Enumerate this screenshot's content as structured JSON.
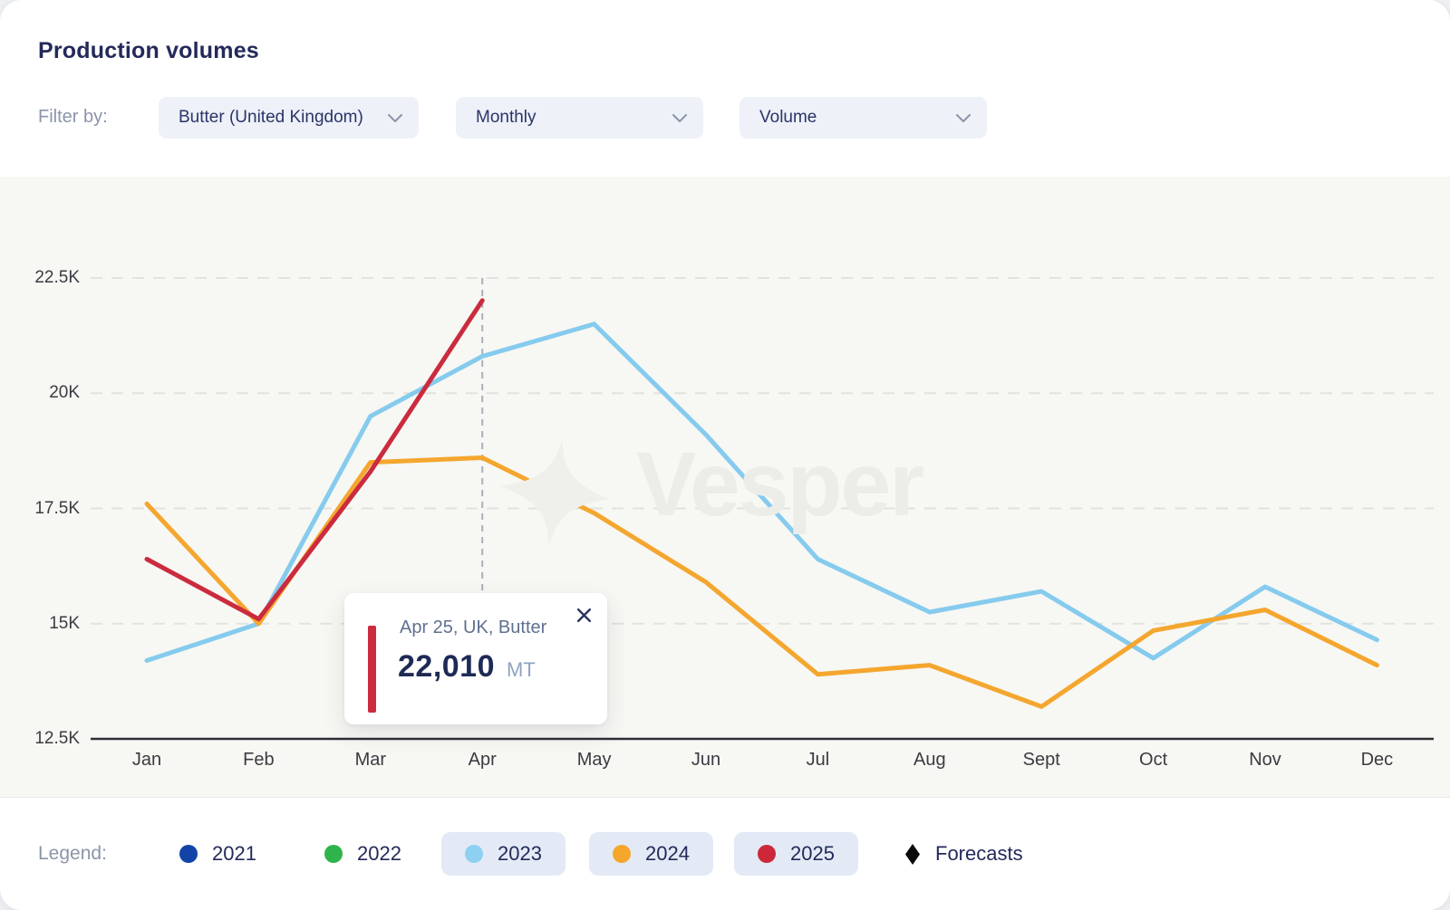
{
  "header": {
    "title": "Production volumes",
    "filter_label": "Filter by:",
    "filters": [
      {
        "id": "commodity",
        "value": "Butter (United Kingdom)"
      },
      {
        "id": "frequency",
        "value": "Monthly"
      },
      {
        "id": "metric",
        "value": "Volume"
      }
    ]
  },
  "chart_data": {
    "type": "line",
    "title": "Production volumes",
    "unit": "MT",
    "categories": [
      "Jan",
      "Feb",
      "Mar",
      "Apr",
      "May",
      "Jun",
      "Jul",
      "Aug",
      "Sept",
      "Oct",
      "Nov",
      "Dec"
    ],
    "y_ticks": [
      {
        "value": 12.5,
        "label": "12.5K"
      },
      {
        "value": 15,
        "label": "15K"
      },
      {
        "value": 17.5,
        "label": "17.5K"
      },
      {
        "value": 20,
        "label": "20K"
      },
      {
        "value": 22.5,
        "label": "22.5K"
      }
    ],
    "ylim": [
      12500,
      22500
    ],
    "grid": "horizontal-dashed",
    "legend_position": "bottom",
    "series": [
      {
        "name": "2023",
        "color": "#85cbee",
        "values": [
          14200,
          15000,
          19500,
          20800,
          21500,
          19100,
          16400,
          15250,
          15700,
          14250,
          15800,
          14650
        ]
      },
      {
        "name": "2024",
        "color": "#f4a62e",
        "values": [
          17600,
          15000,
          18500,
          18600,
          17400,
          15900,
          13900,
          14100,
          13200,
          14850,
          15300,
          14100
        ]
      },
      {
        "name": "2025",
        "color": "#cb2b3e",
        "values": [
          16400,
          15100,
          18300,
          22010,
          null,
          null,
          null,
          null,
          null,
          null,
          null,
          null
        ]
      }
    ]
  },
  "tooltip": {
    "title": "Apr 25, UK, Butter",
    "value": "22,010",
    "unit": "MT",
    "anchor_month": "Apr",
    "accent_color": "#cb2b3e"
  },
  "watermark": {
    "text": "Vesper"
  },
  "legend": {
    "label": "Legend:",
    "items": [
      {
        "label": "2021",
        "marker": "dot",
        "color": "#1144a6",
        "active": false
      },
      {
        "label": "2022",
        "marker": "dot",
        "color": "#2eb44b",
        "active": false
      },
      {
        "label": "2023",
        "marker": "dot",
        "color": "#8dd0f2",
        "active": true
      },
      {
        "label": "2024",
        "marker": "dot",
        "color": "#f5a72b",
        "active": true
      },
      {
        "label": "2025",
        "marker": "dot",
        "color": "#cc2839",
        "active": true
      },
      {
        "label": "Forecasts",
        "marker": "diamond",
        "color": "#0a0a0a",
        "active": false
      }
    ]
  }
}
